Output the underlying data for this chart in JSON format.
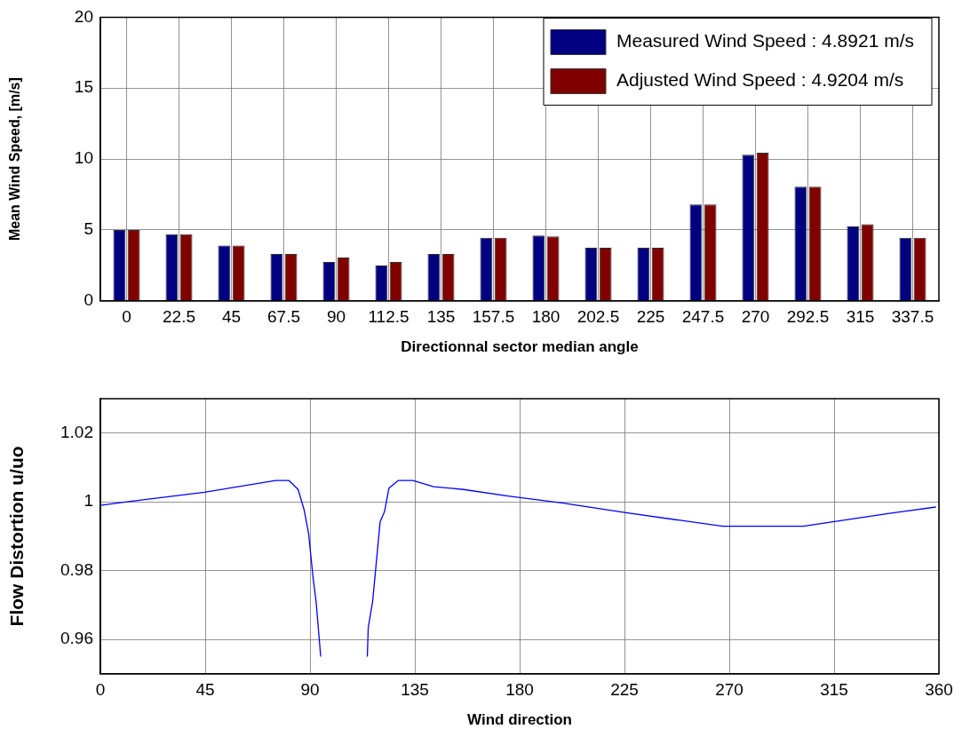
{
  "chart_data": [
    {
      "type": "bar",
      "xlabel": "Directionnal sector median angle",
      "ylabel": "Mean Wind Speed, [m/s]",
      "categories": [
        "0",
        "22.5",
        "45",
        "67.5",
        "90",
        "112.5",
        "135",
        "157.5",
        "180",
        "202.5",
        "225",
        "247.5",
        "270",
        "292.5",
        "315",
        "337.5"
      ],
      "series": [
        {
          "name": "Measured Wind Speed : 4.8921 m/s",
          "color": "#000080",
          "values": [
            5.0,
            4.7,
            3.9,
            3.3,
            2.75,
            2.5,
            3.3,
            4.45,
            4.6,
            3.75,
            3.75,
            6.8,
            10.3,
            8.05,
            5.25,
            4.45
          ]
        },
        {
          "name": "Adjusted Wind Speed : 4.9204 m/s",
          "color": "#800000",
          "values": [
            5.0,
            4.7,
            3.9,
            3.3,
            3.05,
            2.75,
            3.3,
            4.45,
            4.55,
            3.75,
            3.75,
            6.8,
            10.45,
            8.05,
            5.4,
            4.45
          ]
        }
      ],
      "ylim": [
        0,
        20
      ],
      "yticks": [
        0,
        5,
        10,
        15,
        20
      ],
      "grid": true,
      "legend": "top right"
    },
    {
      "type": "line",
      "xlabel": "Wind direction",
      "ylabel": "Flow Distortion u/uo",
      "x": [
        0,
        11.4,
        44.6,
        75.3,
        81,
        84.9,
        87.5,
        89.4,
        91.3,
        92.6,
        94.6,
        105,
        114.6,
        115,
        116.9,
        120.1,
        122,
        123.9,
        127.8,
        134.2,
        143.1,
        155.9,
        175,
        198.1,
        225,
        267.2,
        301.8,
        314.5,
        340.1,
        358.7
      ],
      "series": [
        {
          "color": "#0000ff",
          "values": [
            0.999,
            1.0,
            1.0028,
            1.0062,
            1.0062,
            1.0036,
            0.9976,
            0.9908,
            0.978,
            0.9711,
            0.955,
            null,
            0.955,
            0.9634,
            0.9711,
            0.9942,
            0.9972,
            1.004,
            1.0062,
            1.0062,
            1.0044,
            1.0036,
            1.0017,
            0.9997,
            0.9969,
            0.9929,
            0.9929,
            0.9942,
            0.9968,
            0.9985
          ]
        }
      ],
      "xlim": [
        0,
        360
      ],
      "xticks": [
        0,
        45,
        90,
        135,
        180,
        225,
        270,
        315,
        360
      ],
      "ylim": [
        0.95,
        1.03
      ],
      "yticks": [
        0.96,
        0.98,
        1,
        1.02
      ],
      "grid": true
    }
  ]
}
